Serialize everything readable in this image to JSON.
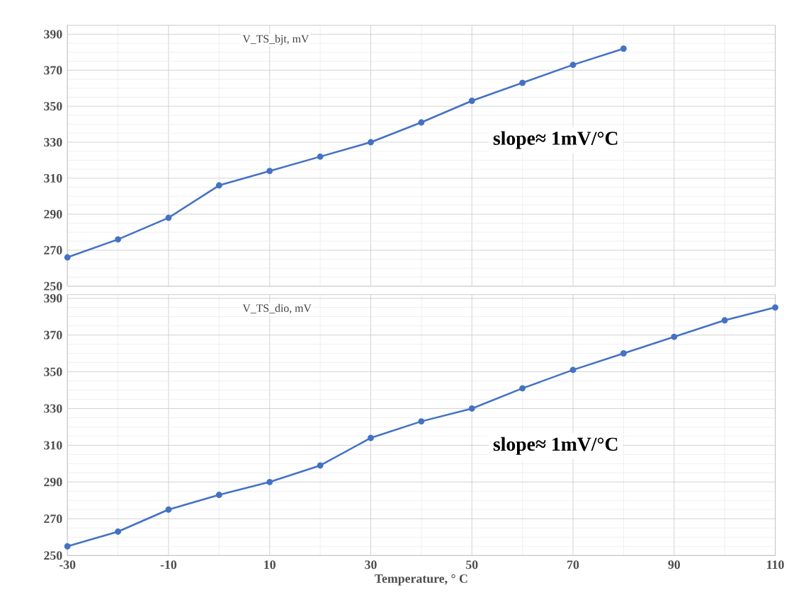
{
  "chart_data": [
    {
      "type": "line",
      "title": "V_TS_bjt, mV",
      "annotations": [
        "slope≈ 1mV/°C"
      ],
      "x": [
        -30,
        -20,
        -10,
        0,
        10,
        20,
        30,
        40,
        50,
        60,
        70,
        80
      ],
      "series": [
        {
          "color": "#4472c4",
          "values": [
            266,
            276,
            288,
            306,
            314,
            322,
            330,
            341,
            353,
            363,
            373,
            382
          ]
        }
      ],
      "xlim": [
        -30,
        110
      ],
      "xticks": [
        -30,
        -10,
        10,
        30,
        50,
        70,
        90,
        110
      ],
      "ylim": [
        250,
        395
      ],
      "yticks": [
        250,
        270,
        290,
        310,
        330,
        350,
        370,
        390
      ],
      "grid": true,
      "marker": "circle",
      "tick_labels": "y"
    },
    {
      "type": "line",
      "title": "V_TS_dio, mV",
      "xlabel": "Temperature, ° C",
      "annotations": [
        "slope≈ 1mV/°C"
      ],
      "x": [
        -30,
        -20,
        -10,
        0,
        10,
        20,
        30,
        40,
        50,
        60,
        70,
        80,
        90,
        100,
        110
      ],
      "series": [
        {
          "color": "#4472c4",
          "values": [
            255,
            263,
            275,
            283,
            290,
            299,
            314,
            323,
            330,
            341,
            351,
            360,
            369,
            378,
            385
          ]
        }
      ],
      "xlim": [
        -30,
        110
      ],
      "xticks": [
        -30,
        -10,
        10,
        30,
        50,
        70,
        90,
        110
      ],
      "ylim": [
        250,
        392
      ],
      "yticks": [
        250,
        270,
        290,
        310,
        330,
        350,
        370,
        390
      ],
      "grid": true,
      "marker": "circle"
    }
  ]
}
